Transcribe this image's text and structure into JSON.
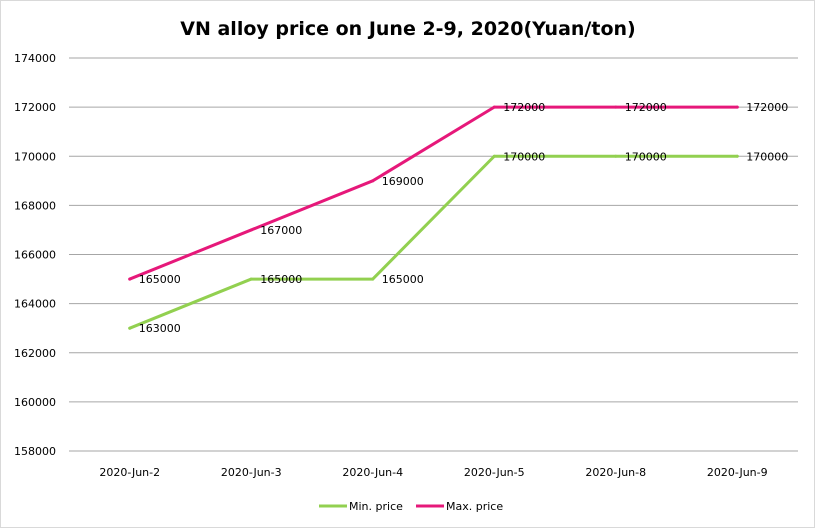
{
  "chart_data": {
    "type": "line",
    "title": "VN alloy price on June 2-9, 2020(Yuan/ton)",
    "categories": [
      "2020-Jun-2",
      "2020-Jun-3",
      "2020-Jun-4",
      "2020-Jun-5",
      "2020-Jun-8",
      "2020-Jun-9"
    ],
    "ylim": [
      158000,
      174000
    ],
    "yticks": [
      158000,
      160000,
      162000,
      164000,
      166000,
      168000,
      170000,
      172000,
      174000
    ],
    "grid": true,
    "legend_position": "bottom",
    "series": [
      {
        "name": "Min. price",
        "color": "#92d050",
        "values": [
          163000,
          165000,
          165000,
          170000,
          170000,
          170000
        ],
        "labels": [
          "163000",
          "165000",
          "165000",
          "170000",
          "170000",
          "170000"
        ]
      },
      {
        "name": "Max. price",
        "color": "#e6187a",
        "values": [
          165000,
          167000,
          169000,
          172000,
          172000,
          172000
        ],
        "labels": [
          "165000",
          "167000",
          "169000",
          "172000",
          "172000",
          "172000"
        ]
      }
    ]
  }
}
